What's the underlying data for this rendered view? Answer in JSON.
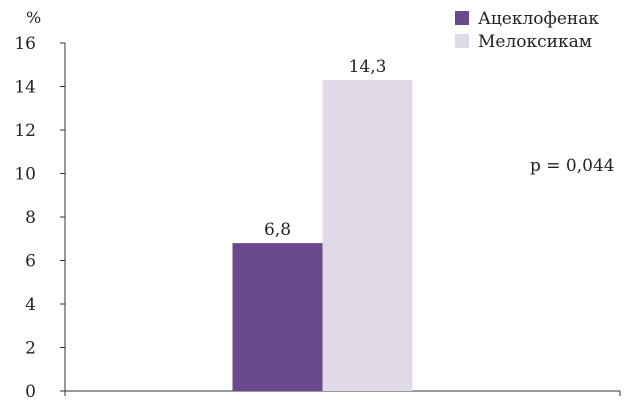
{
  "chart_data": {
    "type": "bar",
    "ylabel": "%",
    "ylim": [
      0,
      16
    ],
    "yticks": [
      0,
      2,
      4,
      6,
      8,
      10,
      12,
      14,
      16
    ],
    "categories": [
      ""
    ],
    "series": [
      {
        "name": "Ацеклофенак",
        "values": [
          6.8
        ],
        "labels": [
          "6,8"
        ],
        "color": "#6a4a8c"
      },
      {
        "name": "Мелоксикам",
        "values": [
          14.3
        ],
        "labels": [
          "14,3"
        ],
        "color": "#e0dae8"
      }
    ],
    "annotation": "p = 0,044",
    "grid": false,
    "legend": "top-right"
  }
}
